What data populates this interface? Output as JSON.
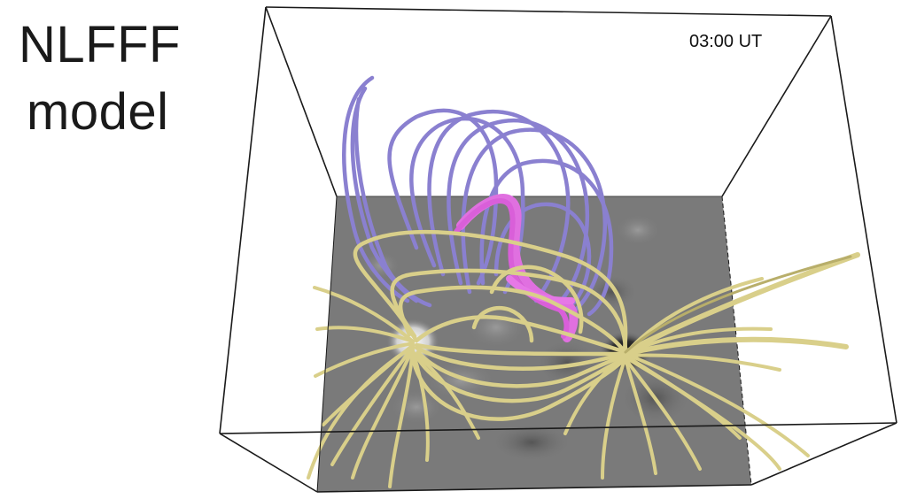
{
  "label": {
    "line1": "NLFFF",
    "line2": "model"
  },
  "timestamp": "03:00 UT",
  "colors": {
    "box_edge": "#1a1a1a",
    "magnetogram_base": "#7a7a7a",
    "open_fieldlines": "#8a80d0",
    "closed_fieldlines": "#d9cf8a",
    "flux_rope": "#e070e0",
    "positive_polarity": "#ffffff",
    "negative_polarity": "#000000"
  }
}
